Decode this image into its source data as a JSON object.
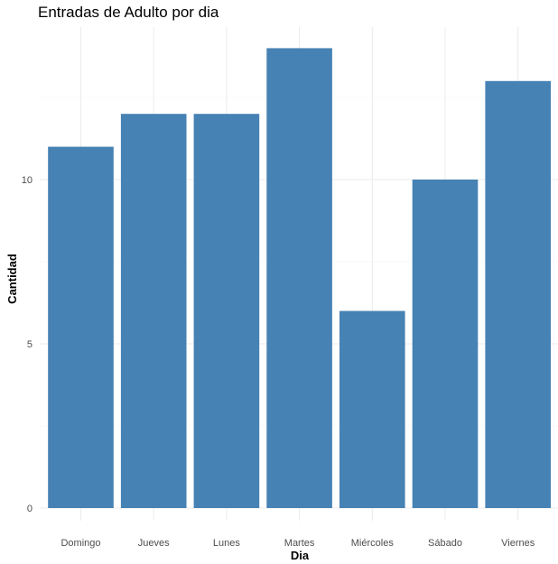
{
  "chart_data": {
    "type": "bar",
    "title": "Entradas de Adulto por dia",
    "xlabel": "Dia",
    "ylabel": "Cantidad",
    "categories": [
      "Domingo",
      "Jueves",
      "Lunes",
      "Martes",
      "Miércoles",
      "Sábado",
      "Viernes"
    ],
    "values": [
      11,
      12,
      12,
      14,
      6,
      10,
      13
    ],
    "ylim": [
      0,
      14.7
    ],
    "yticks": [
      0,
      5,
      10
    ],
    "grid": true,
    "legend": "none",
    "bar_color": "#4682B4"
  }
}
